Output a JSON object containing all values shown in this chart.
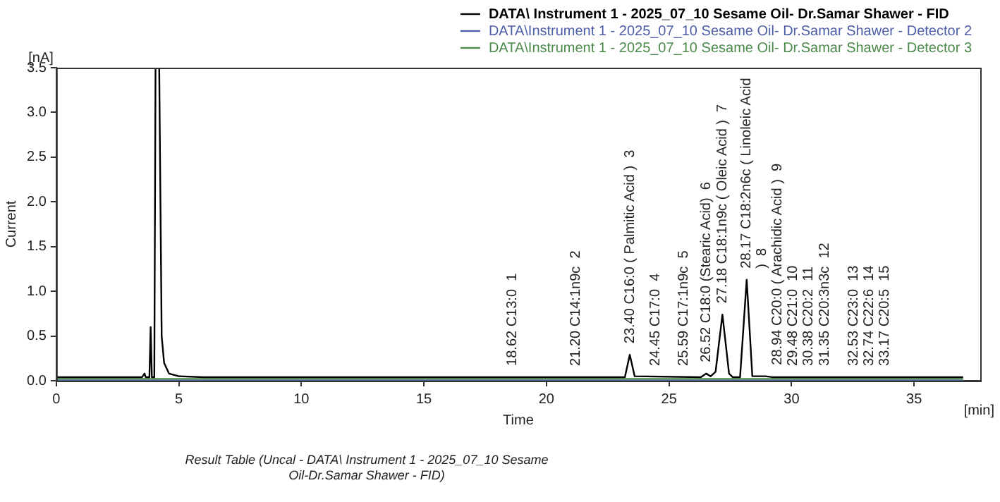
{
  "chart_data": {
    "type": "line",
    "xlabel": "Time",
    "ylabel": "Current",
    "legend": "top right",
    "marker": "none",
    "line_style": "solid",
    "grid": false,
    "xlim": [
      0,
      37.7
    ],
    "xticks": [
      0,
      5,
      10,
      15,
      20,
      25,
      30,
      35
    ],
    "ylim": [
      0,
      3.5
    ],
    "yticks": [
      {
        "value": 0,
        "label": "0.0"
      },
      {
        "value": 0.5,
        "label": "0.5"
      },
      {
        "value": 1,
        "label": "1.0"
      },
      {
        "value": 1.5,
        "label": "1.5"
      },
      {
        "value": 2,
        "label": "2.0"
      },
      {
        "value": 2.5,
        "label": "2.5"
      },
      {
        "value": 3,
        "label": "3.0"
      },
      {
        "value": 3.5,
        "label": "3.5"
      }
    ],
    "series": [
      {
        "name": "DATA\\ Instrument 1 - 2025_07_10 Sesame Oil- Dr.Samar Shawer - FID",
        "color": "#000000",
        "x": [
          0,
          3.5,
          3.6,
          3.65,
          3.8,
          3.85,
          3.9,
          4.0,
          4.05,
          4.2,
          4.3,
          4.4,
          4.6,
          5,
          6,
          23.2,
          23.4,
          23.6,
          26.3,
          26.52,
          26.7,
          26.9,
          27.18,
          27.45,
          27.6,
          27.9,
          28.17,
          28.4,
          28.94,
          29.2,
          37
        ],
        "values": [
          0.04,
          0.04,
          0.08,
          0.04,
          0.04,
          0.6,
          0.04,
          0.04,
          3.5,
          3.5,
          0.5,
          0.2,
          0.08,
          0.05,
          0.04,
          0.04,
          0.29,
          0.05,
          0.04,
          0.08,
          0.05,
          0.1,
          0.74,
          0.08,
          0.04,
          0.04,
          1.13,
          0.05,
          0.05,
          0.04,
          0.04
        ]
      },
      {
        "name": "DATA\\Instrument 1 - 2025_07_10 Sesame Oil- Dr.Samar Shawer - Detector 2",
        "color": "#4d5ea8",
        "x": [
          0,
          37
        ],
        "values": [
          0,
          0
        ]
      },
      {
        "name": "DATA\\Instrument 1 - 2025_07_10 Sesame Oil- Dr.Samar Shawer - Detector 3",
        "color": "#4c8a4c",
        "x": [
          0,
          37
        ],
        "values": [
          0.02,
          0.02
        ]
      }
    ],
    "annotations": [
      "[nA]",
      "[min]",
      "Result Table (Uncal - DATA\\ Instrument 1 - 2025_07_10 Sesame Oil-Dr.Samar Shawer - FID)",
      {
        "text": "18.62 C13:0  1",
        "x": 18.62,
        "y": 0.04
      },
      {
        "text": "21.20 C14:1n9c  2",
        "x": 21.2,
        "y": 0.04
      },
      {
        "text": "23.40 C16:0 ( Palmitic Acid )  3",
        "x": 23.4,
        "y": 0.29
      },
      {
        "text": "24.45 C17:0  4",
        "x": 24.45,
        "y": 0.04
      },
      {
        "text": "25.59 C17:1n9c  5",
        "x": 25.59,
        "y": 0.04
      },
      {
        "text": "26.52 C18:0 (Stearic Acid)  6",
        "x": 26.52,
        "y": 0.08
      },
      {
        "text": "27.18 C18:1n9c ( Oleic Acid )  7",
        "x": 27.18,
        "y": 0.74
      },
      {
        "text": "28.17 C18:2n6c ( Linoleic Acid )  8",
        "x": 28.17,
        "y": 1.13
      },
      {
        "text": "28.94 C20:0 ( Arachidic Acid )  9",
        "x": 28.94,
        "y": 0.05
      },
      {
        "text": "29.48 C21:0  10",
        "x": 29.48,
        "y": 0.04
      },
      {
        "text": "30.38 C20:2  11",
        "x": 30.38,
        "y": 0.04
      },
      {
        "text": "31.35 C20:3n3c  12",
        "x": 31.35,
        "y": 0.04
      },
      {
        "text": "32.53 C23:0  13",
        "x": 32.53,
        "y": 0.04
      },
      {
        "text": "32.74 C22:6  14",
        "x": 32.74,
        "y": 0.04
      },
      {
        "text": "33.17 C20:5  15",
        "x": 33.17,
        "y": 0.04
      }
    ]
  }
}
